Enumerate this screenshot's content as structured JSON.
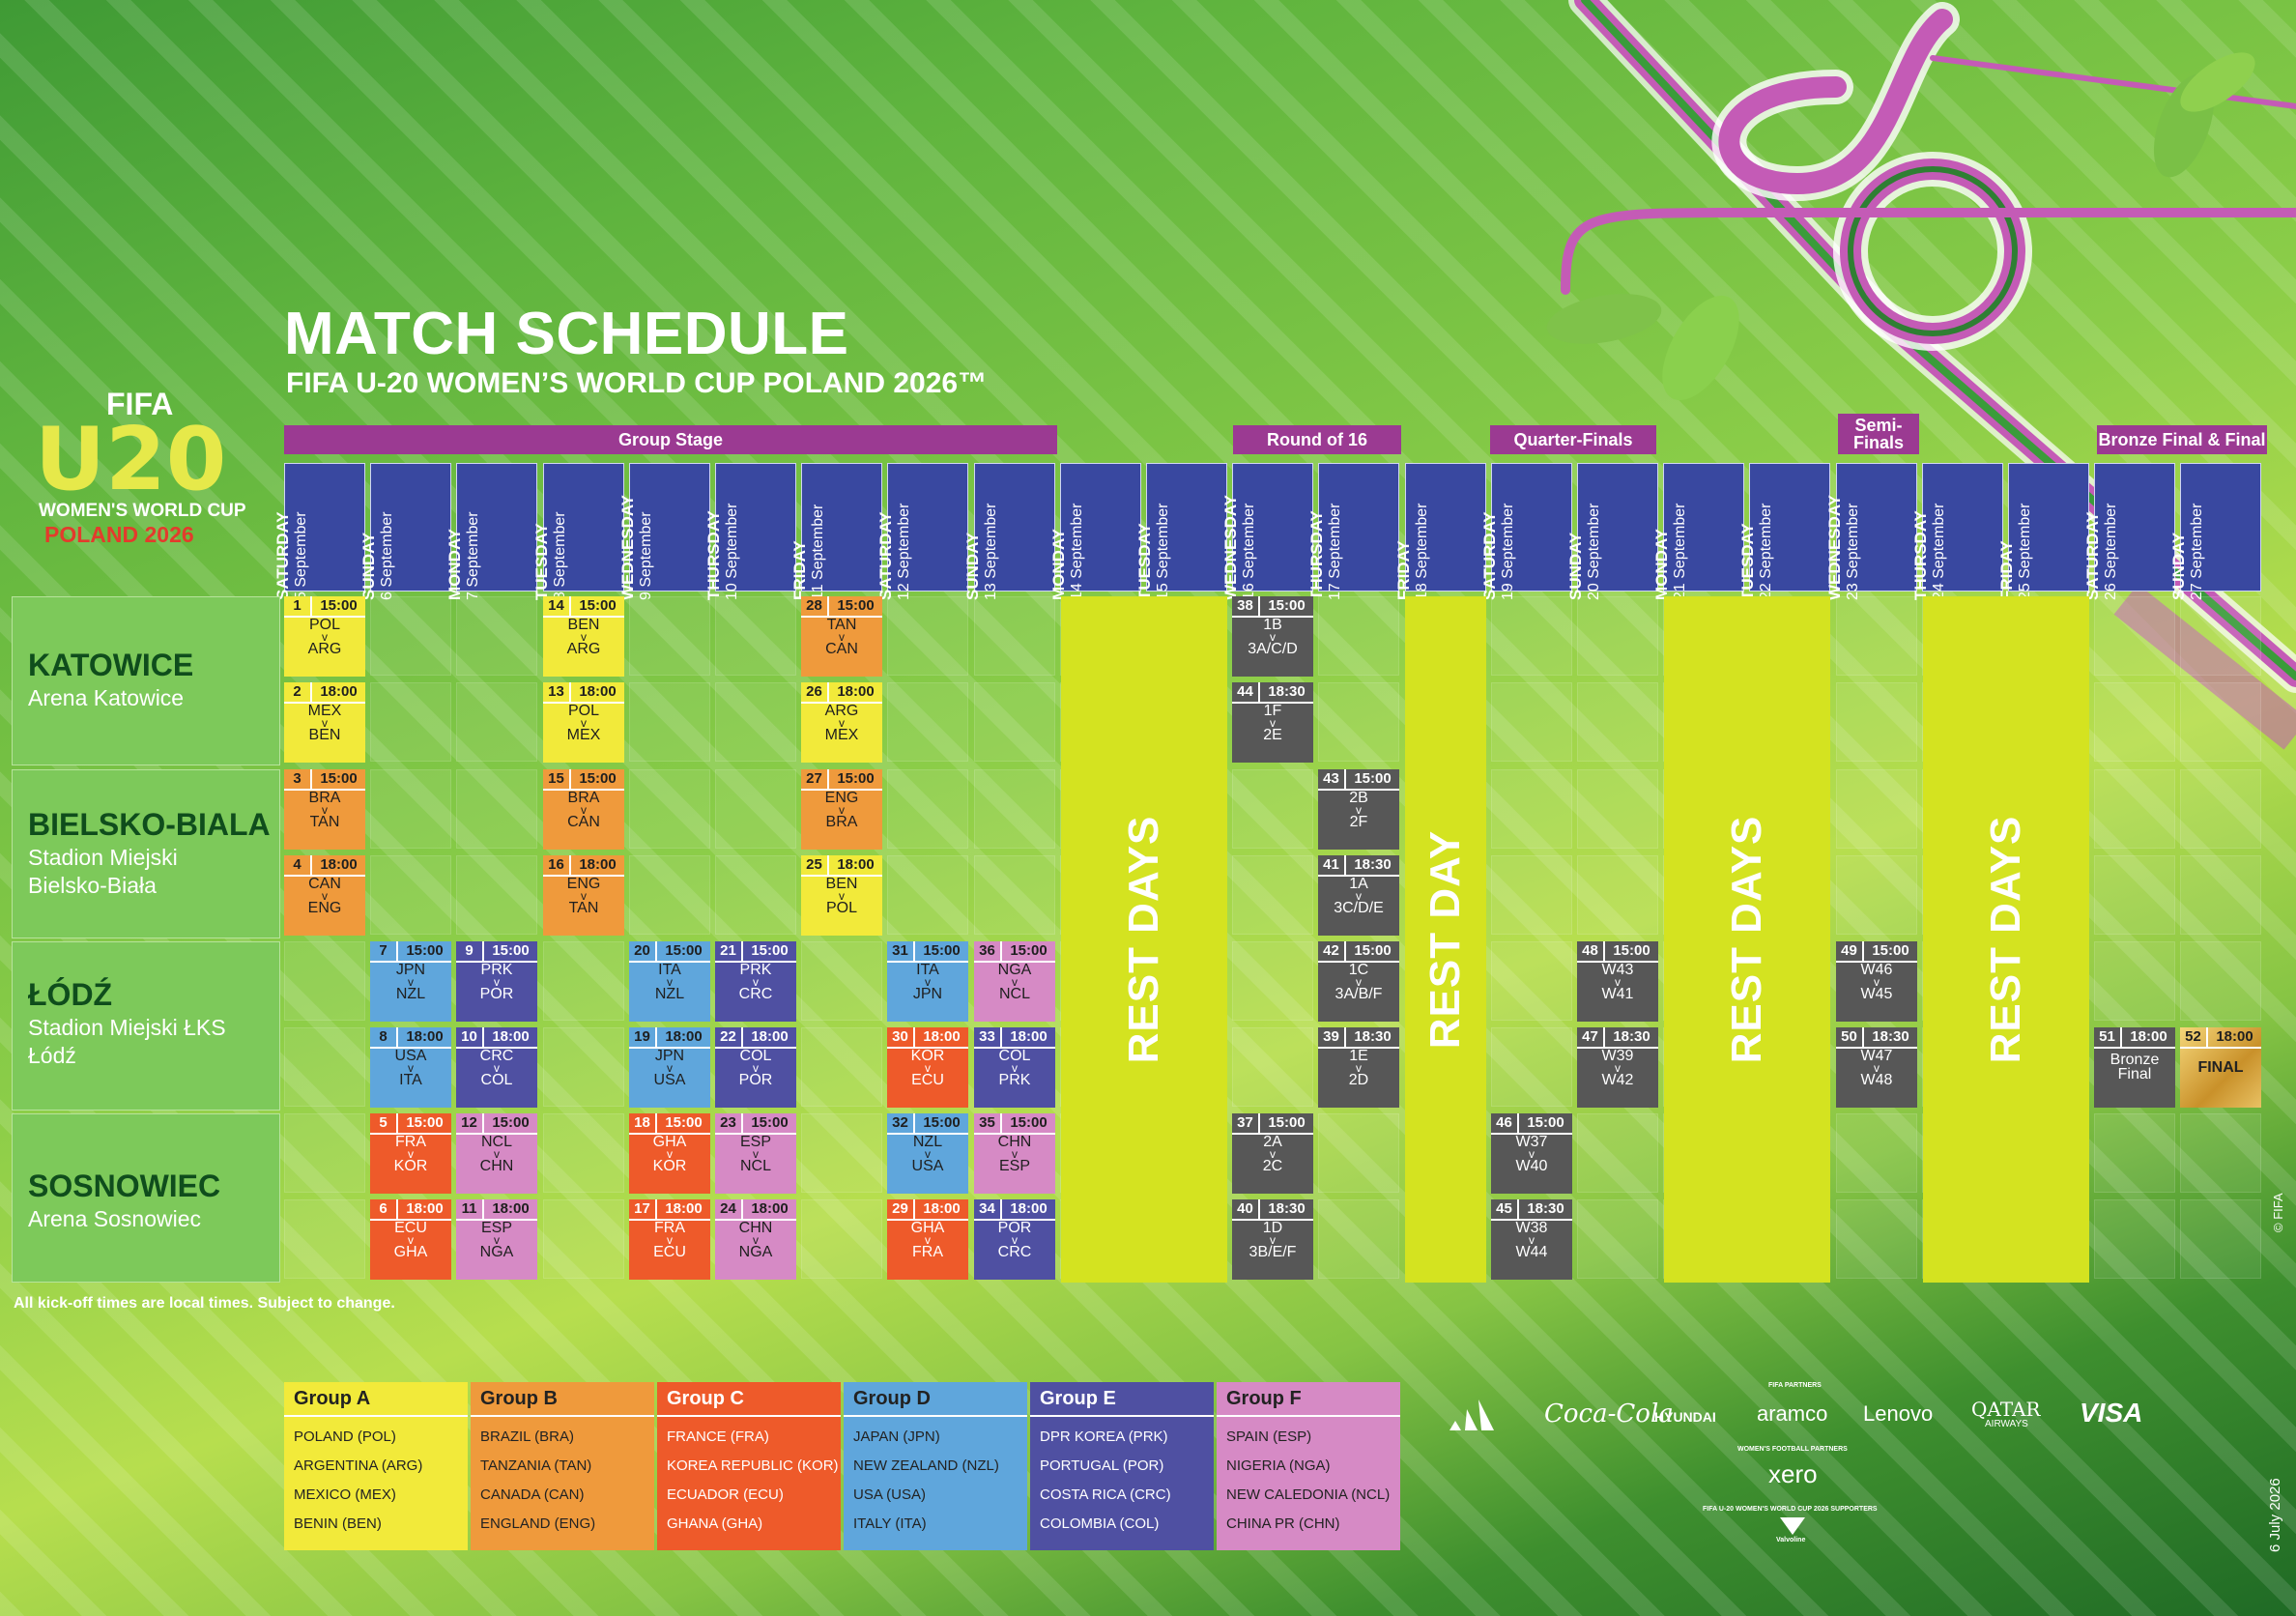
{
  "header": {
    "title": "MATCH SCHEDULE",
    "subtitle": "FIFA U-20 WOMEN’S WORLD CUP POLAND 2026™"
  },
  "logo": {
    "fifa": "FIFA",
    "u20": "U20",
    "line1": "WOMEN'S WORLD CUP",
    "line2": "POLAND 2026"
  },
  "stages": [
    {
      "label": "Group Stage"
    },
    {
      "label": "Round of 16"
    },
    {
      "label": "Quarter-Finals"
    },
    {
      "label": "Semi-\nFinals"
    },
    {
      "label": "Bronze Final & Final"
    }
  ],
  "days": [
    {
      "name": "SATURDAY",
      "date": "5 September"
    },
    {
      "name": "SUNDAY",
      "date": "6 September"
    },
    {
      "name": "MONDAY",
      "date": "7 September"
    },
    {
      "name": "TUESDAY",
      "date": "8 September"
    },
    {
      "name": "WEDNESDAY",
      "date": "9 September"
    },
    {
      "name": "THURSDAY",
      "date": "10 September"
    },
    {
      "name": "FRIDAY",
      "date": "11 September"
    },
    {
      "name": "SATURDAY",
      "date": "12 September"
    },
    {
      "name": "SUNDAY",
      "date": "13 September"
    },
    {
      "name": "MONDAY",
      "date": "14 September"
    },
    {
      "name": "TUESDAY",
      "date": "15 September"
    },
    {
      "name": "WEDNESDAY",
      "date": "16 September"
    },
    {
      "name": "THURSDAY",
      "date": "17 September"
    },
    {
      "name": "FRIDAY",
      "date": "18 September"
    },
    {
      "name": "SATURDAY",
      "date": "19 September"
    },
    {
      "name": "SUNDAY",
      "date": "20 September"
    },
    {
      "name": "MONDAY",
      "date": "21 September"
    },
    {
      "name": "TUESDAY",
      "date": "22 September"
    },
    {
      "name": "WEDNESDAY",
      "date": "23 September"
    },
    {
      "name": "THURSDAY",
      "date": "24 September"
    },
    {
      "name": "FRIDAY",
      "date": "25 September"
    },
    {
      "name": "SATURDAY",
      "date": "26 September"
    },
    {
      "name": "SUNDAY",
      "date": "27 September"
    }
  ],
  "venues": [
    {
      "city": "KATOWICE",
      "stadium": "Arena Katowice"
    },
    {
      "city": "BIELSKO-BIALA",
      "stadium": "Stadion Miejski\nBielsko-Biała"
    },
    {
      "city": "ŁÓDŹ",
      "stadium": "Stadion Miejski ŁKS\nŁódź"
    },
    {
      "city": "SOSNOWIEC",
      "stadium": "Arena Sosnowiec"
    }
  ],
  "rest_days": [
    {
      "label": "REST DAYS"
    },
    {
      "label": "REST DAY"
    },
    {
      "label": "REST DAYS"
    },
    {
      "label": "REST DAYS"
    }
  ],
  "colors": {
    "groupA": "#f2ea3a",
    "groupB": "#ef9a3c",
    "groupC": "#ee5a2a",
    "groupD": "#5fa6dc",
    "groupE": "#4f50a2",
    "groupF": "#d68ac5",
    "knockout": "#575757",
    "final": "#d9a72b",
    "stage": "#9b3a92",
    "day_header": "#3948a0",
    "rest": "#d4e320"
  },
  "matches": [
    {
      "num": "1",
      "time": "15:00",
      "t1": "POL",
      "t2": "ARG",
      "g": "groupA"
    },
    {
      "num": "2",
      "time": "18:00",
      "t1": "MEX",
      "t2": "BEN",
      "g": "groupA"
    },
    {
      "num": "3",
      "time": "15:00",
      "t1": "BRA",
      "t2": "TAN",
      "g": "groupB"
    },
    {
      "num": "4",
      "time": "18:00",
      "t1": "CAN",
      "t2": "ENG",
      "g": "groupB"
    },
    {
      "num": "5",
      "time": "15:00",
      "t1": "FRA",
      "t2": "KOR",
      "g": "groupC"
    },
    {
      "num": "6",
      "time": "18:00",
      "t1": "ECU",
      "t2": "GHA",
      "g": "groupC"
    },
    {
      "num": "7",
      "time": "15:00",
      "t1": "JPN",
      "t2": "NZL",
      "g": "groupD"
    },
    {
      "num": "8",
      "time": "18:00",
      "t1": "USA",
      "t2": "ITA",
      "g": "groupD"
    },
    {
      "num": "9",
      "time": "15:00",
      "t1": "PRK",
      "t2": "POR",
      "g": "groupE"
    },
    {
      "num": "10",
      "time": "18:00",
      "t1": "CRC",
      "t2": "COL",
      "g": "groupE"
    },
    {
      "num": "12",
      "time": "15:00",
      "t1": "NCL",
      "t2": "CHN",
      "g": "groupF"
    },
    {
      "num": "11",
      "time": "18:00",
      "t1": "ESP",
      "t2": "NGA",
      "g": "groupF"
    },
    {
      "num": "14",
      "time": "15:00",
      "t1": "BEN",
      "t2": "ARG",
      "g": "groupA"
    },
    {
      "num": "13",
      "time": "18:00",
      "t1": "POL",
      "t2": "MEX",
      "g": "groupA"
    },
    {
      "num": "15",
      "time": "15:00",
      "t1": "BRA",
      "t2": "CAN",
      "g": "groupB"
    },
    {
      "num": "16",
      "time": "18:00",
      "t1": "ENG",
      "t2": "TAN",
      "g": "groupB"
    },
    {
      "num": "20",
      "time": "15:00",
      "t1": "ITA",
      "t2": "NZL",
      "g": "groupD"
    },
    {
      "num": "19",
      "time": "18:00",
      "t1": "JPN",
      "t2": "USA",
      "g": "groupD"
    },
    {
      "num": "18",
      "time": "15:00",
      "t1": "GHA",
      "t2": "KOR",
      "g": "groupC"
    },
    {
      "num": "17",
      "time": "18:00",
      "t1": "FRA",
      "t2": "ECU",
      "g": "groupC"
    },
    {
      "num": "21",
      "time": "15:00",
      "t1": "PRK",
      "t2": "CRC",
      "g": "groupE"
    },
    {
      "num": "22",
      "time": "18:00",
      "t1": "COL",
      "t2": "POR",
      "g": "groupE"
    },
    {
      "num": "23",
      "time": "15:00",
      "t1": "ESP",
      "t2": "NCL",
      "g": "groupF"
    },
    {
      "num": "24",
      "time": "18:00",
      "t1": "CHN",
      "t2": "NGA",
      "g": "groupF"
    },
    {
      "num": "28",
      "time": "15:00",
      "t1": "TAN",
      "t2": "CAN",
      "g": "groupB"
    },
    {
      "num": "26",
      "time": "18:00",
      "t1": "ARG",
      "t2": "MEX",
      "g": "groupA"
    },
    {
      "num": "27",
      "time": "15:00",
      "t1": "ENG",
      "t2": "BRA",
      "g": "groupB"
    },
    {
      "num": "25",
      "time": "18:00",
      "t1": "BEN",
      "t2": "POL",
      "g": "groupA"
    },
    {
      "num": "31",
      "time": "15:00",
      "t1": "ITA",
      "t2": "JPN",
      "g": "groupD"
    },
    {
      "num": "30",
      "time": "18:00",
      "t1": "KOR",
      "t2": "ECU",
      "g": "groupC"
    },
    {
      "num": "32",
      "time": "15:00",
      "t1": "NZL",
      "t2": "USA",
      "g": "groupD"
    },
    {
      "num": "29",
      "time": "18:00",
      "t1": "GHA",
      "t2": "FRA",
      "g": "groupC"
    },
    {
      "num": "36",
      "time": "15:00",
      "t1": "NGA",
      "t2": "NCL",
      "g": "groupF"
    },
    {
      "num": "33",
      "time": "18:00",
      "t1": "COL",
      "t2": "PRK",
      "g": "groupE"
    },
    {
      "num": "35",
      "time": "15:00",
      "t1": "CHN",
      "t2": "ESP",
      "g": "groupF"
    },
    {
      "num": "34",
      "time": "18:00",
      "t1": "POR",
      "t2": "CRC",
      "g": "groupE"
    },
    {
      "num": "38",
      "time": "15:00",
      "t1": "1B",
      "t2": "3A/C/D",
      "g": "knockout"
    },
    {
      "num": "44",
      "time": "18:30",
      "t1": "1F",
      "t2": "2E",
      "g": "knockout"
    },
    {
      "num": "37",
      "time": "15:00",
      "t1": "2A",
      "t2": "2C",
      "g": "knockout"
    },
    {
      "num": "40",
      "time": "18:30",
      "t1": "1D",
      "t2": "3B/E/F",
      "g": "knockout"
    },
    {
      "num": "43",
      "time": "15:00",
      "t1": "2B",
      "t2": "2F",
      "g": "knockout"
    },
    {
      "num": "41",
      "time": "18:30",
      "t1": "1A",
      "t2": "3C/D/E",
      "g": "knockout"
    },
    {
      "num": "42",
      "time": "15:00",
      "t1": "1C",
      "t2": "3A/B/F",
      "g": "knockout"
    },
    {
      "num": "39",
      "time": "18:30",
      "t1": "1E",
      "t2": "2D",
      "g": "knockout"
    },
    {
      "num": "46",
      "time": "15:00",
      "t1": "W37",
      "t2": "W40",
      "g": "knockout"
    },
    {
      "num": "45",
      "time": "18:30",
      "t1": "W38",
      "t2": "W44",
      "g": "knockout"
    },
    {
      "num": "48",
      "time": "15:00",
      "t1": "W43",
      "t2": "W41",
      "g": "knockout"
    },
    {
      "num": "47",
      "time": "18:30",
      "t1": "W39",
      "t2": "W42",
      "g": "knockout"
    },
    {
      "num": "49",
      "time": "15:00",
      "t1": "W46",
      "t2": "W45",
      "g": "knockout"
    },
    {
      "num": "50",
      "time": "18:30",
      "t1": "W47",
      "t2": "W48",
      "g": "knockout"
    },
    {
      "num": "51",
      "time": "18:00",
      "t1": "Bronze",
      "t2": "Final",
      "g": "knockout",
      "nov": true
    },
    {
      "num": "52",
      "time": "18:00",
      "t1": "FINAL",
      "t2": "",
      "g": "final",
      "nov": true
    }
  ],
  "note": "All kick-off times are local times. Subject to change.",
  "groups": [
    {
      "title": "Group A",
      "color": "groupA",
      "teams": [
        "POLAND (POL)",
        "ARGENTINA (ARG)",
        "MEXICO (MEX)",
        "BENIN (BEN)"
      ]
    },
    {
      "title": "Group B",
      "color": "groupB",
      "teams": [
        "BRAZIL (BRA)",
        "TANZANIA (TAN)",
        "CANADA (CAN)",
        "ENGLAND (ENG)"
      ]
    },
    {
      "title": "Group C",
      "color": "groupC",
      "teams": [
        "FRANCE (FRA)",
        "KOREA REPUBLIC (KOR)",
        "ECUADOR (ECU)",
        "GHANA (GHA)"
      ]
    },
    {
      "title": "Group D",
      "color": "groupD",
      "teams": [
        "JAPAN (JPN)",
        "NEW ZEALAND (NZL)",
        "USA (USA)",
        "ITALY (ITA)"
      ]
    },
    {
      "title": "Group E",
      "color": "groupE",
      "teams": [
        "DPR KOREA (PRK)",
        "PORTUGAL (POR)",
        "COSTA RICA (CRC)",
        "COLOMBIA (COL)"
      ]
    },
    {
      "title": "Group F",
      "color": "groupF",
      "teams": [
        "SPAIN (ESP)",
        "NIGERIA (NGA)",
        "NEW CALEDONIA (NCL)",
        "CHINA PR (CHN)"
      ]
    }
  ],
  "sponsors": {
    "partners_label": "FIFA PARTNERS",
    "partners": [
      "adidas-icon",
      "Coca-Cola",
      "HYUNDAI",
      "aramco",
      "Lenovo",
      "QATAR",
      "AIRWAYS",
      "VISA"
    ],
    "womens_label": "WOMEN'S FOOTBALL PARTNERS",
    "womens": "xero",
    "supporters_label": "FIFA U-20 WOMEN'S WORLD CUP 2026 SUPPORTERS",
    "supporters": "Valvoline"
  },
  "copyright": "© FIFA",
  "date": "6 July 2026"
}
